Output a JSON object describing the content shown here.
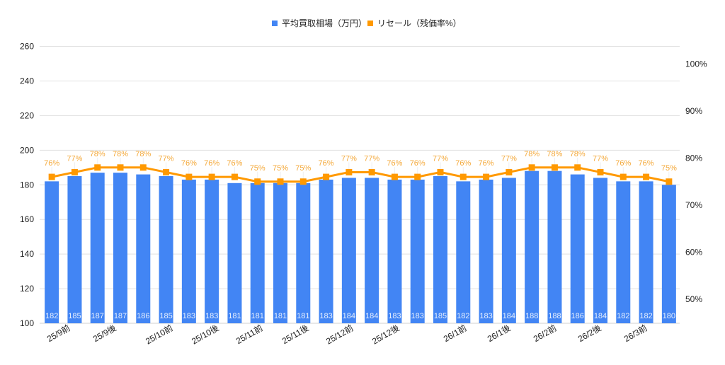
{
  "chart_data": {
    "type": "bar+line",
    "title": "",
    "legend": {
      "position": "top",
      "entries": [
        {
          "name": "平均買取相場（万円）",
          "color": "#4285f4",
          "type": "bar"
        },
        {
          "name": "リセール（残価率%）",
          "color": "#ff9900",
          "type": "line"
        }
      ]
    },
    "categories_labeled": [
      {
        "label": "25/9前",
        "x_end": 100
      },
      {
        "label": "25/9後",
        "x_end": 165
      },
      {
        "label": "25/10前",
        "x_end": 245
      },
      {
        "label": "25/10後",
        "x_end": 310
      },
      {
        "label": "25/11前",
        "x_end": 372
      },
      {
        "label": "25/11後",
        "x_end": 437
      },
      {
        "label": "25/12前",
        "x_end": 500
      },
      {
        "label": "25/12後",
        "x_end": 565
      },
      {
        "label": "26/1前",
        "x_end": 660
      },
      {
        "label": "26/1後",
        "x_end": 722
      },
      {
        "label": "26/2前",
        "x_end": 787
      },
      {
        "label": "26/2後",
        "x_end": 850
      },
      {
        "label": "26/3前",
        "x_end": 915
      }
    ],
    "series": [
      {
        "name": "平均買取相場（万円）",
        "type": "bar",
        "axis": "left",
        "color": "#4285f4",
        "values": [
          182,
          185,
          187,
          187,
          186,
          185,
          183,
          183,
          181,
          181,
          181,
          181,
          183,
          184,
          184,
          183,
          183,
          185,
          182,
          183,
          184,
          188,
          188,
          186,
          184,
          182,
          182,
          180
        ]
      },
      {
        "name": "リセール（残価率%）",
        "type": "line",
        "axis": "right",
        "color": "#ff9900",
        "values": [
          76,
          77,
          78,
          78,
          78,
          77,
          76,
          76,
          76,
          75,
          75,
          75,
          76,
          77,
          77,
          76,
          76,
          77,
          76,
          76,
          77,
          78,
          78,
          78,
          77,
          76,
          76,
          75
        ]
      }
    ],
    "left_axis": {
      "ticks": [
        100,
        120,
        140,
        160,
        180,
        200,
        220,
        240,
        260
      ],
      "ylim": [
        100,
        260
      ],
      "label": ""
    },
    "right_axis": {
      "ticks": [
        "50%",
        "60%",
        "70%",
        "80%",
        "90%",
        "100%"
      ],
      "values": [
        50,
        60,
        70,
        80,
        90,
        100
      ],
      "ylim": [
        45,
        100
      ],
      "label": ""
    },
    "xlabel": "",
    "grid": true
  }
}
